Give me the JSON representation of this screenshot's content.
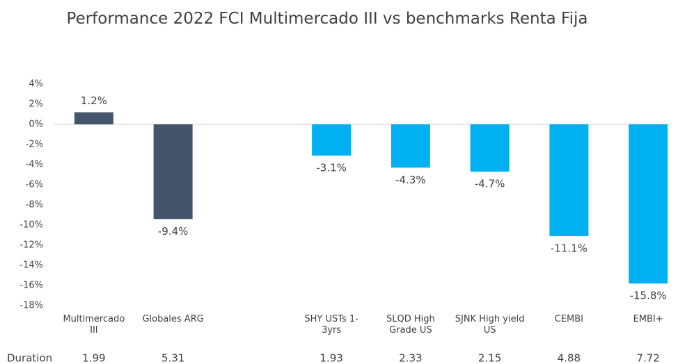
{
  "chart_data": {
    "type": "bar",
    "title": "Performance 2022 FCI Multimercado III vs benchmarks Renta Fija",
    "categories": [
      "Multimercado III",
      "Globales ARG",
      null,
      "SHY USTs 1-3yrs",
      "SLQD High Grade US",
      "SJNK High yield US",
      "CEMBI",
      "EMBI+"
    ],
    "values": [
      1.2,
      -9.4,
      null,
      -3.1,
      -4.3,
      -4.7,
      -11.1,
      -15.8
    ],
    "value_labels": [
      "1.2%",
      "-9.4%",
      null,
      "-3.1%",
      "-4.3%",
      "-4.7%",
      "-11.1%",
      "-15.8%"
    ],
    "colors": [
      "#44546a",
      "#44546a",
      null,
      "#00b0f0",
      "#00b0f0",
      "#00b0f0",
      "#00b0f0",
      "#00b0f0"
    ],
    "ylim": [
      -18,
      4
    ],
    "yticks": [
      {
        "value": 4,
        "label": "4%"
      },
      {
        "value": 2,
        "label": "2%"
      },
      {
        "value": 0,
        "label": "0%"
      },
      {
        "value": -2,
        "label": "-2%"
      },
      {
        "value": -4,
        "label": "-4%"
      },
      {
        "value": -6,
        "label": "-6%"
      },
      {
        "value": -8,
        "label": "-8%"
      },
      {
        "value": -10,
        "label": "-10%"
      },
      {
        "value": -12,
        "label": "-12%"
      },
      {
        "value": -14,
        "label": "-14%"
      },
      {
        "value": -16,
        "label": "-16%"
      },
      {
        "value": -18,
        "label": "-18%"
      }
    ],
    "grid": false,
    "duration_label": "Duration",
    "duration": [
      1.99,
      5.31,
      null,
      1.93,
      2.33,
      2.15,
      4.88,
      7.72
    ]
  }
}
